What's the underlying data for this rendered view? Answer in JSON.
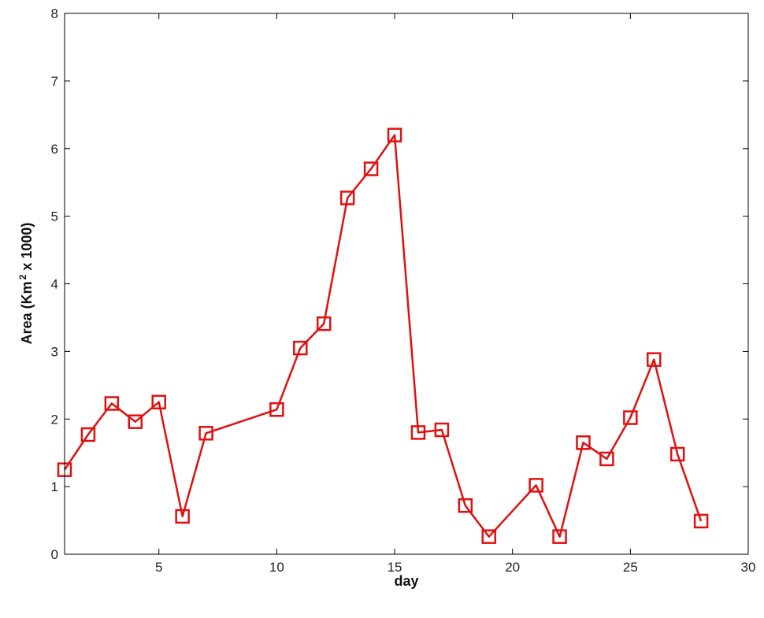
{
  "chart_data": {
    "type": "line",
    "title": "",
    "xlabel": "day",
    "ylabel_main": "Area (Km",
    "ylabel_sup": "2",
    "ylabel_tail": " x 1000)",
    "xlim": [
      1,
      30
    ],
    "ylim": [
      0,
      8
    ],
    "xticks": [
      5,
      10,
      15,
      20,
      25,
      30
    ],
    "yticks": [
      0,
      1,
      2,
      3,
      4,
      5,
      6,
      7,
      8
    ],
    "grid": false,
    "marker": "square",
    "line_color": "#e01010",
    "series": [
      {
        "x": [
          1,
          2,
          3,
          4,
          5,
          6,
          7,
          10,
          11,
          12,
          13,
          14,
          15,
          16,
          17,
          18,
          19,
          21,
          22,
          23,
          24,
          25,
          26,
          27,
          28
        ],
        "y": [
          1.25,
          1.77,
          2.23,
          1.96,
          2.25,
          0.56,
          1.79,
          2.14,
          3.05,
          3.41,
          5.27,
          5.7,
          6.2,
          1.8,
          1.84,
          0.72,
          0.26,
          1.02,
          0.26,
          1.65,
          1.41,
          2.02,
          2.88,
          1.48,
          0.49
        ]
      }
    ]
  }
}
